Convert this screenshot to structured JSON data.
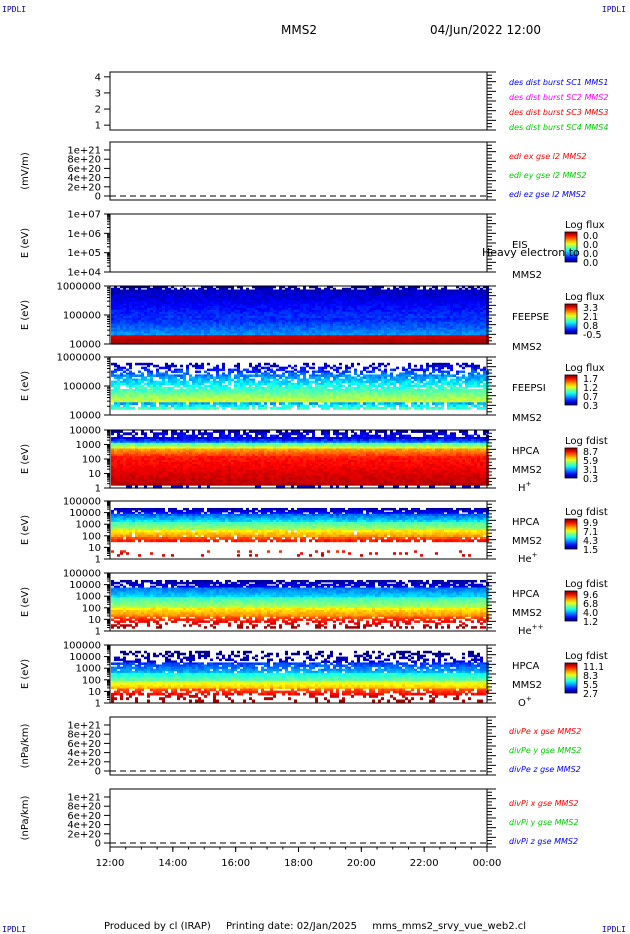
{
  "corners": {
    "tl": "IPDLI",
    "tr": "IPDLI",
    "bl": "IPDLI",
    "br": "IPDLI"
  },
  "header": {
    "spacecraft": "MMS2",
    "datetime": "04/Jun/2022 12:00"
  },
  "footer": {
    "produced": "Produced by cl (IRAP)",
    "printing": "Printing date: 02/Jan/2025",
    "file": "mms_mms2_srvy_vue_web2.cl"
  },
  "x_axis": {
    "ticks": [
      "12:00",
      "14:00",
      "16:00",
      "18:00",
      "20:00",
      "22:00",
      "00:00"
    ]
  },
  "overlay_text": "Heavy electron to",
  "colors": {
    "blue": "#0000ff",
    "magenta": "#ff00ff",
    "red": "#ff0000",
    "green": "#00cc00",
    "darkblue": "#0000aa"
  },
  "chart_data": [
    {
      "type": "line",
      "panel": "dist",
      "yticks": [
        "1",
        "2",
        "3",
        "4"
      ],
      "ylim": [
        0.7,
        4.3
      ],
      "legend": [
        {
          "text": "des dist burst SC1 MMS1",
          "color": "#0000ff"
        },
        {
          "text": "des dist burst SC2 MMS2",
          "color": "#ff00ff"
        },
        {
          "text": "des dist burst SC3 MMS3",
          "color": "#ff0000"
        },
        {
          "text": "des dist burst SC4 MMS4",
          "color": "#00cc00"
        }
      ]
    },
    {
      "type": "line",
      "panel": "edi",
      "ylabel": "(mV/m)",
      "yticks": [
        "0",
        "2e+20",
        "4e+20",
        "6e+20",
        "8e+20",
        "1e+21"
      ],
      "dashed_zero": true,
      "legend": [
        {
          "text": "edi ex gse l2 MMS2",
          "color": "#ff0000"
        },
        {
          "text": "edi ey gse l2 MMS2",
          "color": "#00cc00"
        },
        {
          "text": "edi ez gse l2 MMS2",
          "color": "#0000ff"
        }
      ]
    },
    {
      "type": "heatmap",
      "panel": "eis",
      "ylabel": "E (eV)",
      "yticks": [
        "1e+04",
        "1e+05",
        "1e+06",
        "1e+07"
      ],
      "instrument": "EIS",
      "sc": "MMS2",
      "colorbar": {
        "title": "Log flux",
        "labels": [
          "0.0",
          "0.0",
          "0.0",
          "0.0"
        ]
      },
      "empty": true
    },
    {
      "type": "heatmap",
      "panel": "feepse",
      "ylabel": "E (eV)",
      "yticks": [
        "10000",
        "100000",
        "1000000"
      ],
      "instrument": "FEEPSE",
      "sc": "MMS2",
      "colorbar": {
        "title": "Log flux",
        "labels": [
          "3.3",
          "2.1",
          "0.8",
          "-0.5"
        ]
      }
    },
    {
      "type": "heatmap",
      "panel": "feepsi",
      "ylabel": "E (eV)",
      "yticks": [
        "10000",
        "100000",
        "1000000"
      ],
      "instrument": "FEEPSI",
      "sc": "MMS2",
      "colorbar": {
        "title": "Log flux",
        "labels": [
          "1.7",
          "1.2",
          "0.7",
          "0.3"
        ]
      }
    },
    {
      "type": "heatmap",
      "panel": "hpca_h",
      "ylabel": "E (eV)",
      "yticks": [
        "1",
        "10",
        "100",
        "1000",
        "10000"
      ],
      "instrument": "HPCA",
      "sc": "MMS2",
      "species": "H",
      "charge": "+",
      "colorbar": {
        "title": "Log fdist",
        "labels": [
          "8.7",
          "5.9",
          "3.1",
          "0.3"
        ]
      }
    },
    {
      "type": "heatmap",
      "panel": "hpca_he1",
      "ylabel": "E (eV)",
      "yticks": [
        "1",
        "10",
        "100",
        "1000",
        "10000",
        "100000"
      ],
      "instrument": "HPCA",
      "sc": "MMS2",
      "species": "He",
      "charge": "+",
      "colorbar": {
        "title": "Log fdist",
        "labels": [
          "9.9",
          "7.1",
          "4.3",
          "1.5"
        ]
      }
    },
    {
      "type": "heatmap",
      "panel": "hpca_he2",
      "ylabel": "E (eV)",
      "yticks": [
        "1",
        "10",
        "100",
        "1000",
        "10000",
        "100000"
      ],
      "instrument": "HPCA",
      "sc": "MMS2",
      "species": "He",
      "charge": "++",
      "colorbar": {
        "title": "Log fdist",
        "labels": [
          "9.6",
          "6.8",
          "4.0",
          "1.2"
        ]
      }
    },
    {
      "type": "heatmap",
      "panel": "hpca_o",
      "ylabel": "E (eV)",
      "yticks": [
        "1",
        "10",
        "100",
        "1000",
        "10000",
        "100000"
      ],
      "instrument": "HPCA",
      "sc": "MMS2",
      "species": "O",
      "charge": "+",
      "colorbar": {
        "title": "Log fdist",
        "labels": [
          "11.1",
          "8.3",
          "5.5",
          "2.7"
        ]
      }
    },
    {
      "type": "line",
      "panel": "divpe",
      "ylabel": "(nPa/km)",
      "yticks": [
        "0",
        "2e+20",
        "4e+20",
        "6e+20",
        "8e+20",
        "1e+21"
      ],
      "dashed_zero": true,
      "legend": [
        {
          "text": "divPe x gse MMS2",
          "color": "#ff0000"
        },
        {
          "text": "divPe y gse MMS2",
          "color": "#00cc00"
        },
        {
          "text": "divPe z gse MMS2",
          "color": "#0000ff"
        }
      ]
    },
    {
      "type": "line",
      "panel": "divpi",
      "ylabel": "(nPa/km)",
      "yticks": [
        "0",
        "2e+20",
        "4e+20",
        "6e+20",
        "8e+20",
        "1e+21"
      ],
      "dashed_zero": true,
      "legend": [
        {
          "text": "divPi x gse MMS2",
          "color": "#ff0000"
        },
        {
          "text": "divPi y gse MMS2",
          "color": "#00cc00"
        },
        {
          "text": "divPi z gse MMS2",
          "color": "#0000ff"
        }
      ]
    }
  ]
}
